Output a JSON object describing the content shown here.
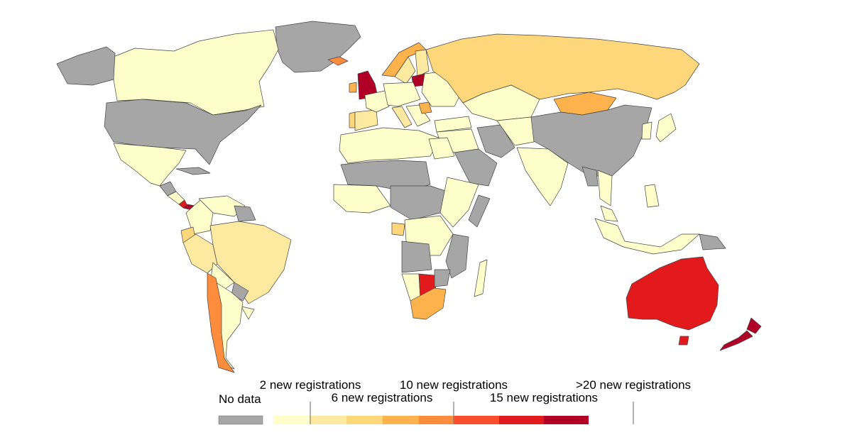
{
  "palette": {
    "no_data": "#a6a6a6",
    "bins": [
      "#fefecb",
      "#fde9a0",
      "#fed77a",
      "#feb24c",
      "#fd8d3c",
      "#fc4e2a",
      "#e31a1c",
      "#b10026"
    ],
    "stroke": "#444444"
  },
  "legend": {
    "no_data": "No data",
    "labels": [
      "2 new registrations",
      "6 new registrations",
      "10 new registrations",
      "15 new registrations",
      ">20 new registrations"
    ]
  },
  "regions": [
    {
      "id": "greenland",
      "name": "Greenland",
      "bin": "nodata"
    },
    {
      "id": "canada",
      "name": "Canada",
      "bin": 0
    },
    {
      "id": "alaska",
      "name": "Alaska",
      "bin": "nodata"
    },
    {
      "id": "usa",
      "name": "United States",
      "bin": "nodata"
    },
    {
      "id": "mexico",
      "name": "Mexico",
      "bin": 0
    },
    {
      "id": "central-america",
      "name": "Central America",
      "bin": 0
    },
    {
      "id": "guatemala",
      "name": "Guatemala",
      "bin": "nodata"
    },
    {
      "id": "panama",
      "name": "Panama",
      "bin": 7
    },
    {
      "id": "costa-rica",
      "name": "Costa Rica",
      "bin": 6
    },
    {
      "id": "cuba",
      "name": "Cuba",
      "bin": "nodata"
    },
    {
      "id": "venezuela",
      "name": "Venezuela",
      "bin": 0
    },
    {
      "id": "guianas",
      "name": "Guianas",
      "bin": "nodata"
    },
    {
      "id": "colombia",
      "name": "Colombia",
      "bin": 0
    },
    {
      "id": "ecuador",
      "name": "Ecuador",
      "bin": 2
    },
    {
      "id": "peru",
      "name": "Peru",
      "bin": 1
    },
    {
      "id": "brazil",
      "name": "Brazil",
      "bin": 1
    },
    {
      "id": "bolivia",
      "name": "Bolivia",
      "bin": 0
    },
    {
      "id": "paraguay",
      "name": "Paraguay",
      "bin": "nodata"
    },
    {
      "id": "uruguay",
      "name": "Uruguay",
      "bin": 0
    },
    {
      "id": "argentina",
      "name": "Argentina",
      "bin": 0
    },
    {
      "id": "chile",
      "name": "Chile",
      "bin": 4
    },
    {
      "id": "iceland",
      "name": "Iceland",
      "bin": 4
    },
    {
      "id": "uk",
      "name": "United Kingdom",
      "bin": 7
    },
    {
      "id": "ireland",
      "name": "Ireland",
      "bin": 3
    },
    {
      "id": "norway",
      "name": "Norway",
      "bin": 3
    },
    {
      "id": "sweden",
      "name": "Sweden",
      "bin": 1
    },
    {
      "id": "finland",
      "name": "Finland",
      "bin": 1
    },
    {
      "id": "baltic",
      "name": "Baltic",
      "bin": 7
    },
    {
      "id": "spain",
      "name": "Spain",
      "bin": 1
    },
    {
      "id": "portugal",
      "name": "Portugal",
      "bin": 2
    },
    {
      "id": "france",
      "name": "France",
      "bin": 0
    },
    {
      "id": "central-europe",
      "name": "Central Europe",
      "bin": 0
    },
    {
      "id": "italy",
      "name": "Italy",
      "bin": 1
    },
    {
      "id": "balkans",
      "name": "Balkans",
      "bin": 0
    },
    {
      "id": "romania",
      "name": "Romania",
      "bin": 3
    },
    {
      "id": "eastern-europe",
      "name": "Eastern Europe",
      "bin": 0
    },
    {
      "id": "russia",
      "name": "Russia",
      "bin": 2
    },
    {
      "id": "kazakhstan",
      "name": "Kazakhstan",
      "bin": 0
    },
    {
      "id": "mongolia",
      "name": "Mongolia",
      "bin": 3
    },
    {
      "id": "china",
      "name": "China",
      "bin": "nodata"
    },
    {
      "id": "turkey",
      "name": "Turkey",
      "bin": 0
    },
    {
      "id": "middle-east",
      "name": "Middle East",
      "bin": 0
    },
    {
      "id": "saudi-arabia",
      "name": "Saudi Arabia",
      "bin": "nodata"
    },
    {
      "id": "iran",
      "name": "Iran",
      "bin": "nodata"
    },
    {
      "id": "central-asia",
      "name": "Central Asia",
      "bin": 0
    },
    {
      "id": "india",
      "name": "India",
      "bin": 0
    },
    {
      "id": "southeast-asia",
      "name": "Southeast Asia",
      "bin": 0
    },
    {
      "id": "thailand-vietnam",
      "name": "Thailand / Vietnam",
      "bin": "nodata"
    },
    {
      "id": "korea",
      "name": "Korea",
      "bin": 0
    },
    {
      "id": "japan",
      "name": "Japan",
      "bin": 0
    },
    {
      "id": "philippines",
      "name": "Philippines",
      "bin": 0
    },
    {
      "id": "malaysia",
      "name": "Malaysia",
      "bin": 0
    },
    {
      "id": "indonesia",
      "name": "Indonesia",
      "bin": 0
    },
    {
      "id": "papua",
      "name": "Papua New Guinea",
      "bin": "nodata"
    },
    {
      "id": "north-africa",
      "name": "North Africa",
      "bin": 0
    },
    {
      "id": "egypt",
      "name": "Egypt",
      "bin": 0
    },
    {
      "id": "sahel",
      "name": "Sahel",
      "bin": "nodata"
    },
    {
      "id": "west-africa",
      "name": "West Africa",
      "bin": 0
    },
    {
      "id": "central-africa",
      "name": "Central Africa",
      "bin": "nodata"
    },
    {
      "id": "east-africa",
      "name": "East Africa",
      "bin": 0
    },
    {
      "id": "somalia",
      "name": "Somalia",
      "bin": "nodata"
    },
    {
      "id": "gabon",
      "name": "Gabon",
      "bin": 2
    },
    {
      "id": "drc",
      "name": "Congo",
      "bin": 0
    },
    {
      "id": "angola",
      "name": "Angola",
      "bin": "nodata"
    },
    {
      "id": "mozambique",
      "name": "Mozambique",
      "bin": "nodata"
    },
    {
      "id": "namibia",
      "name": "Namibia",
      "bin": 0
    },
    {
      "id": "botswana",
      "name": "Botswana",
      "bin": 6
    },
    {
      "id": "zimbabwe",
      "name": "Zimbabwe",
      "bin": "nodata"
    },
    {
      "id": "south-africa",
      "name": "South Africa",
      "bin": 3
    },
    {
      "id": "madagascar",
      "name": "Madagascar",
      "bin": 0
    },
    {
      "id": "australia",
      "name": "Australia",
      "bin": 6
    },
    {
      "id": "tasmania",
      "name": "Tasmania",
      "bin": 6
    },
    {
      "id": "nz-north",
      "name": "New Zealand North",
      "bin": 7
    },
    {
      "id": "nz-south",
      "name": "New Zealand South",
      "bin": 7
    }
  ]
}
